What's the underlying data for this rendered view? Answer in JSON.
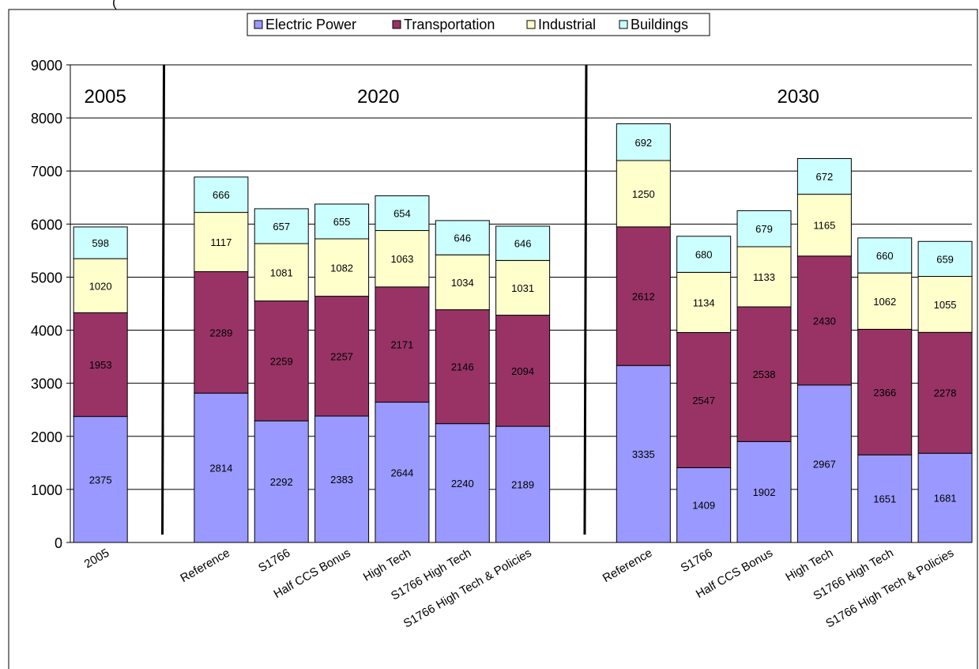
{
  "chart_data": {
    "type": "bar",
    "stacked": true,
    "title_partial": "(",
    "legend_position": "top",
    "grid": true,
    "ylim": [
      0,
      9000
    ],
    "y_ticks": [
      "0",
      "1000",
      "2000",
      "3000",
      "4000",
      "5000",
      "6000",
      "7000",
      "8000",
      "9000"
    ],
    "groups": [
      {
        "label": "2005",
        "categories": [
          "2005"
        ]
      },
      {
        "label": "2020",
        "categories": [
          "Reference",
          "S1766",
          "Half CCS Bonus",
          "High Tech",
          "S1766 High Tech",
          "S1766 High Tech & Policies"
        ]
      },
      {
        "label": "2030",
        "categories": [
          "Reference",
          "S1766",
          "Half CCS Bonus",
          "High Tech",
          "S1766 High Tech",
          "S1766 High Tech & Policies"
        ]
      }
    ],
    "categories": [
      "2005",
      "Reference",
      "S1766",
      "Half CCS Bonus",
      "High Tech",
      "S1766 High Tech",
      "S1766 High Tech & Policies",
      "Reference",
      "S1766",
      "Half CCS Bonus",
      "High Tech",
      "S1766 High Tech",
      "S1766 High Tech & Policies"
    ],
    "series": [
      {
        "name": "Electric Power",
        "color": "#9999ff",
        "values": [
          2375,
          2814,
          2292,
          2383,
          2644,
          2240,
          2189,
          3335,
          1409,
          1902,
          2967,
          1651,
          1681
        ]
      },
      {
        "name": "Transportation",
        "color": "#993366",
        "values": [
          1953,
          2289,
          2259,
          2257,
          2171,
          2146,
          2094,
          2612,
          2547,
          2538,
          2430,
          2366,
          2278
        ]
      },
      {
        "name": "Industrial",
        "color": "#ffffcc",
        "values": [
          1020,
          1117,
          1081,
          1082,
          1063,
          1034,
          1031,
          1250,
          1134,
          1133,
          1165,
          1062,
          1055
        ]
      },
      {
        "name": "Buildings",
        "color": "#ccffff",
        "values": [
          598,
          666,
          657,
          655,
          654,
          646,
          646,
          692,
          680,
          679,
          672,
          660,
          659
        ]
      }
    ]
  }
}
